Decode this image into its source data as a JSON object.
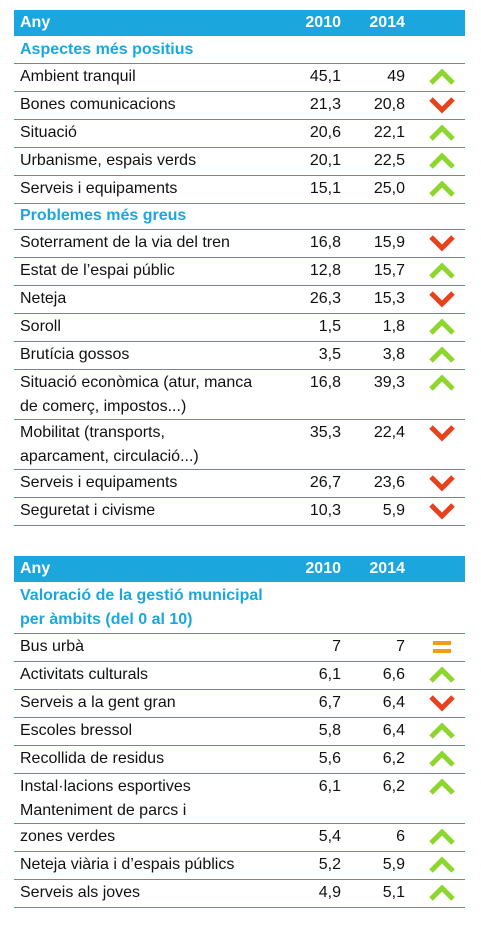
{
  "tables": [
    {
      "header": {
        "label": "Any",
        "col1": "2010",
        "col2": "2014"
      },
      "sections": [
        {
          "title": [
            "Aspectes més positius"
          ],
          "rows": [
            {
              "label": [
                "Ambient tranquil"
              ],
              "v2010": "45,1",
              "v2014": "49",
              "trend": "up"
            },
            {
              "label": [
                "Bones comunicacions"
              ],
              "v2010": "21,3",
              "v2014": "20,8",
              "trend": "down"
            },
            {
              "label": [
                "Situació"
              ],
              "v2010": "20,6",
              "v2014": "22,1",
              "trend": "up"
            },
            {
              "label": [
                "Urbanisme, espais verds"
              ],
              "v2010": "20,1",
              "v2014": "22,5",
              "trend": "up"
            },
            {
              "label": [
                "Serveis i equipaments"
              ],
              "v2010": "15,1",
              "v2014": "25,0",
              "trend": "up"
            }
          ]
        },
        {
          "title": [
            "Problemes més greus"
          ],
          "rows": [
            {
              "label": [
                "Soterrament de la via del tren"
              ],
              "v2010": "16,8",
              "v2014": "15,9",
              "trend": "down"
            },
            {
              "label": [
                "Estat de l’espai públic"
              ],
              "v2010": "12,8",
              "v2014": "15,7",
              "trend": "up"
            },
            {
              "label": [
                "Neteja"
              ],
              "v2010": "26,3",
              "v2014": "15,3",
              "trend": "down"
            },
            {
              "label": [
                "Soroll"
              ],
              "v2010": "1,5",
              "v2014": "1,8",
              "trend": "up"
            },
            {
              "label": [
                "Brutícia gossos"
              ],
              "v2010": "3,5",
              "v2014": "3,8",
              "trend": "up"
            },
            {
              "label": [
                "Situació econòmica (atur, manca",
                "de comerç, impostos...)"
              ],
              "v2010": "16,8",
              "v2014": "39,3",
              "trend": "up"
            },
            {
              "label": [
                "Mobilitat (transports,",
                "aparcament, circulació...)"
              ],
              "v2010": "35,3",
              "v2014": "22,4",
              "trend": "down"
            },
            {
              "label": [
                "Serveis i equipaments"
              ],
              "v2010": "26,7",
              "v2014": "23,6",
              "trend": "down"
            },
            {
              "label": [
                "Seguretat i civisme"
              ],
              "v2010": "10,3",
              "v2014": "5,9",
              "trend": "down"
            }
          ]
        }
      ]
    },
    {
      "header": {
        "label": "Any",
        "col1": "2010",
        "col2": "2014"
      },
      "sections": [
        {
          "title": [
            "Valoració de la gestió municipal",
            "per àmbits (del 0 al 10)"
          ],
          "rows": [
            {
              "label": [
                "Bus urbà"
              ],
              "v2010": "7",
              "v2014": "7",
              "trend": "equal"
            },
            {
              "label": [
                "Activitats culturals"
              ],
              "v2010": "6,1",
              "v2014": "6,6",
              "trend": "up"
            },
            {
              "label": [
                "Serveis a la gent gran"
              ],
              "v2010": "6,7",
              "v2014": "6,4",
              "trend": "down"
            },
            {
              "label": [
                "Escoles bressol"
              ],
              "v2010": "5,8",
              "v2014": "6,4",
              "trend": "up"
            },
            {
              "label": [
                "Recollida de residus"
              ],
              "v2010": "5,6",
              "v2014": "6,2",
              "trend": "up"
            },
            {
              "label": [
                "Instal·lacions esportives",
                "Manteniment de parcs i"
              ],
              "v2010": "6,1",
              "v2014": "6,2",
              "trend": "up"
            },
            {
              "label": [
                "zones verdes"
              ],
              "v2010": "5,4",
              "v2014": "6",
              "trend": "up"
            },
            {
              "label": [
                "Neteja viària i d’espais públics"
              ],
              "v2010": "5,2",
              "v2014": "5,9",
              "trend": "up"
            },
            {
              "label": [
                "Serveis als joves"
              ],
              "v2010": "4,9",
              "v2014": "5,1",
              "trend": "up"
            }
          ]
        }
      ]
    }
  ]
}
